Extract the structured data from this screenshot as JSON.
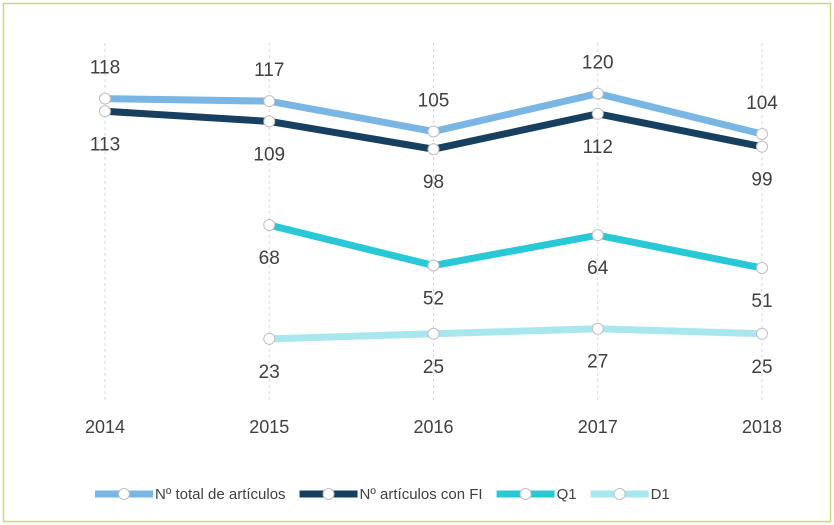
{
  "chart_data": {
    "type": "line",
    "categories": [
      "2014",
      "2015",
      "2016",
      "2017",
      "2018"
    ],
    "series": [
      {
        "name": "Nº total de artículos",
        "color": "#7ab6e4",
        "label_position": "above",
        "values": [
          118,
          117,
          105,
          120,
          104
        ]
      },
      {
        "name": "Nº artículos con FI",
        "color": "#173f5f",
        "label_position": "below",
        "values": [
          113,
          109,
          98,
          112,
          99
        ]
      },
      {
        "name": "Q1",
        "color": "#28c8d6",
        "label_position": "below",
        "values": [
          null,
          68,
          52,
          64,
          51
        ]
      },
      {
        "name": "D1",
        "color": "#a9e7ee",
        "label_position": "below",
        "values": [
          null,
          23,
          25,
          27,
          25
        ]
      }
    ],
    "ylim": [
      0,
      140
    ],
    "grid": "x",
    "legend": "bottom"
  }
}
